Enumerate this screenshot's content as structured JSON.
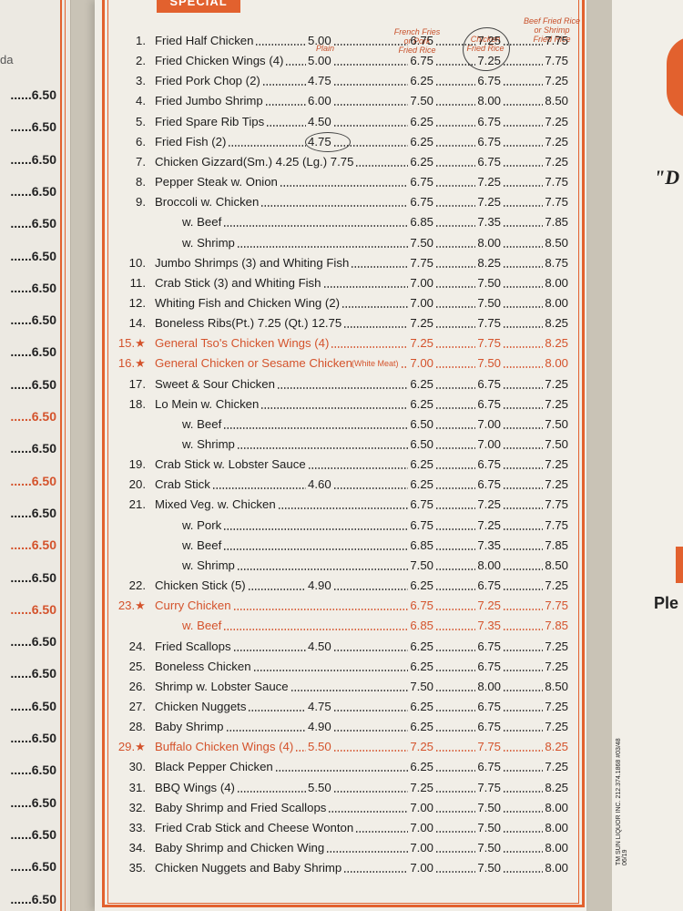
{
  "header": {
    "tab_label": "SPECIAL"
  },
  "columns": {
    "plain": "Plain",
    "fries": [
      "French Fries",
      "or Pork",
      "Fried Rice"
    ],
    "chicken": [
      "Chicken",
      "Fried Rice"
    ],
    "beef": [
      "Beef Fried Rice",
      "or Shrimp",
      "Fried Rice"
    ]
  },
  "left_page": {
    "fragment": "da",
    "prices": [
      "6.50",
      "6.50",
      "6.50",
      "6.50",
      "6.50",
      "6.50",
      "6.50",
      "6.50",
      "6.50",
      "6.50",
      "6.50",
      "6.50",
      "6.50",
      "6.50",
      "6.50",
      "6.50",
      "6.50",
      "6.50",
      "6.50",
      "6.50",
      "6.50",
      "6.50",
      "6.50",
      "6.50",
      "6.50",
      "6.50",
      "6.50"
    ]
  },
  "right_page": {
    "quote": "\"D",
    "ple": "Ple"
  },
  "side_code": "TM SUN LIQUOR INC. 212.374.1868 #03/48 06/19",
  "items": [
    {
      "num": "1.",
      "name": "Fried Half Chicken",
      "plain": "5.00",
      "fries": "6.75",
      "chicken": "7.25",
      "beef": "7.75",
      "red": false,
      "sub": false
    },
    {
      "num": "2.",
      "name": "Fried Chicken Wings (4)",
      "plain": "5.00",
      "fries": "6.75",
      "chicken": "7.25",
      "beef": "7.75",
      "red": false,
      "sub": false
    },
    {
      "num": "3.",
      "name": "Fried Pork Chop (2)",
      "plain": "4.75",
      "fries": "6.25",
      "chicken": "6.75",
      "beef": "7.25",
      "red": false,
      "sub": false
    },
    {
      "num": "4.",
      "name": "Fried Jumbo Shrimp",
      "plain": "6.00",
      "fries": "7.50",
      "chicken": "8.00",
      "beef": "8.50",
      "red": false,
      "sub": false
    },
    {
      "num": "5.",
      "name": "Fried Spare Rib Tips",
      "plain": "4.50",
      "fries": "6.25",
      "chicken": "6.75",
      "beef": "7.25",
      "red": false,
      "sub": false
    },
    {
      "num": "6.",
      "name": "Fried Fish (2)",
      "plain": "4.75",
      "fries": "6.25",
      "chicken": "6.75",
      "beef": "7.25",
      "red": false,
      "sub": false
    },
    {
      "num": "7.",
      "name": "Chicken Gizzard(Sm.) 4.25 (Lg.) 7.75",
      "plain": "",
      "fries": "6.25",
      "chicken": "6.75",
      "beef": "7.25",
      "red": false,
      "sub": false
    },
    {
      "num": "8.",
      "name": "Pepper Steak w. Onion",
      "plain": "",
      "fries": "6.75",
      "chicken": "7.25",
      "beef": "7.75",
      "red": false,
      "sub": false
    },
    {
      "num": "9.",
      "name": "Broccoli w. Chicken",
      "plain": "",
      "fries": "6.75",
      "chicken": "7.25",
      "beef": "7.75",
      "red": false,
      "sub": false
    },
    {
      "num": "",
      "name": "w. Beef",
      "plain": "",
      "fries": "6.85",
      "chicken": "7.35",
      "beef": "7.85",
      "red": false,
      "sub": true
    },
    {
      "num": "",
      "name": "w. Shrimp",
      "plain": "",
      "fries": "7.50",
      "chicken": "8.00",
      "beef": "8.50",
      "red": false,
      "sub": true
    },
    {
      "num": "10.",
      "name": "Jumbo Shrimps (3) and Whiting Fish",
      "plain": "",
      "fries": "7.75",
      "chicken": "8.25",
      "beef": "8.75",
      "red": false,
      "sub": false
    },
    {
      "num": "11.",
      "name": "Crab Stick (3) and Whiting Fish",
      "plain": "",
      "fries": "7.00",
      "chicken": "7.50",
      "beef": "8.00",
      "red": false,
      "sub": false
    },
    {
      "num": "12.",
      "name": "Whiting Fish and Chicken Wing (2)",
      "plain": "",
      "fries": "7.00",
      "chicken": "7.50",
      "beef": "8.00",
      "red": false,
      "sub": false
    },
    {
      "num": "14.",
      "name": "Boneless Ribs(Pt.) 7.25 (Qt.) 12.75",
      "plain": "",
      "fries": "7.25",
      "chicken": "7.75",
      "beef": "8.25",
      "red": false,
      "sub": false
    },
    {
      "num": "15.★",
      "name": "General Tso's Chicken Wings (4)",
      "plain": "",
      "fries": "7.25",
      "chicken": "7.75",
      "beef": "8.25",
      "red": true,
      "sub": false
    },
    {
      "num": "16.★",
      "name": "General Chicken or Sesame Chicken",
      "note": "(White Meat)",
      "plain": "",
      "fries": "7.00",
      "chicken": "7.50",
      "beef": "8.00",
      "red": true,
      "sub": false
    },
    {
      "num": "17.",
      "name": "Sweet & Sour Chicken",
      "plain": "",
      "fries": "6.25",
      "chicken": "6.75",
      "beef": "7.25",
      "red": false,
      "sub": false
    },
    {
      "num": "18.",
      "name": "Lo Mein w. Chicken",
      "plain": "",
      "fries": "6.25",
      "chicken": "6.75",
      "beef": "7.25",
      "red": false,
      "sub": false
    },
    {
      "num": "",
      "name": "w. Beef",
      "plain": "",
      "fries": "6.50",
      "chicken": "7.00",
      "beef": "7.50",
      "red": false,
      "sub": true
    },
    {
      "num": "",
      "name": "w. Shrimp",
      "plain": "",
      "fries": "6.50",
      "chicken": "7.00",
      "beef": "7.50",
      "red": false,
      "sub": true
    },
    {
      "num": "19.",
      "name": "Crab Stick w. Lobster Sauce",
      "plain": "",
      "fries": "6.25",
      "chicken": "6.75",
      "beef": "7.25",
      "red": false,
      "sub": false
    },
    {
      "num": "20.",
      "name": "Crab Stick",
      "plain": "4.60",
      "fries": "6.25",
      "chicken": "6.75",
      "beef": "7.25",
      "red": false,
      "sub": false
    },
    {
      "num": "21.",
      "name": "Mixed Veg. w. Chicken",
      "plain": "",
      "fries": "6.75",
      "chicken": "7.25",
      "beef": "7.75",
      "red": false,
      "sub": false
    },
    {
      "num": "",
      "name": "w. Pork",
      "plain": "",
      "fries": "6.75",
      "chicken": "7.25",
      "beef": "7.75",
      "red": false,
      "sub": true
    },
    {
      "num": "",
      "name": "w. Beef",
      "plain": "",
      "fries": "6.85",
      "chicken": "7.35",
      "beef": "7.85",
      "red": false,
      "sub": true
    },
    {
      "num": "",
      "name": "w. Shrimp",
      "plain": "",
      "fries": "7.50",
      "chicken": "8.00",
      "beef": "8.50",
      "red": false,
      "sub": true
    },
    {
      "num": "22.",
      "name": "Chicken Stick (5)",
      "plain": "4.90",
      "fries": "6.25",
      "chicken": "6.75",
      "beef": "7.25",
      "red": false,
      "sub": false
    },
    {
      "num": "23.★",
      "name": "Curry Chicken",
      "plain": "",
      "fries": "6.75",
      "chicken": "7.25",
      "beef": "7.75",
      "red": true,
      "sub": false
    },
    {
      "num": "",
      "name": "w. Beef",
      "plain": "",
      "fries": "6.85",
      "chicken": "7.35",
      "beef": "7.85",
      "red": true,
      "sub": true
    },
    {
      "num": "24.",
      "name": "Fried Scallops",
      "plain": "4.50",
      "fries": "6.25",
      "chicken": "6.75",
      "beef": "7.25",
      "red": false,
      "sub": false
    },
    {
      "num": "25.",
      "name": "Boneless Chicken",
      "plain": "",
      "fries": "6.25",
      "chicken": "6.75",
      "beef": "7.25",
      "red": false,
      "sub": false
    },
    {
      "num": "26.",
      "name": "Shrimp w. Lobster Sauce",
      "plain": "",
      "fries": "7.50",
      "chicken": "8.00",
      "beef": "8.50",
      "red": false,
      "sub": false
    },
    {
      "num": "27.",
      "name": "Chicken Nuggets",
      "plain": "4.75",
      "fries": "6.25",
      "chicken": "6.75",
      "beef": "7.25",
      "red": false,
      "sub": false
    },
    {
      "num": "28.",
      "name": "Baby Shrimp",
      "plain": "4.90",
      "fries": "6.25",
      "chicken": "6.75",
      "beef": "7.25",
      "red": false,
      "sub": false
    },
    {
      "num": "29.★",
      "name": "Buffalo Chicken Wings (4)",
      "plain": "5.50",
      "fries": "7.25",
      "chicken": "7.75",
      "beef": "8.25",
      "red": true,
      "sub": false
    },
    {
      "num": "30.",
      "name": "Black Pepper Chicken",
      "plain": "",
      "fries": "6.25",
      "chicken": "6.75",
      "beef": "7.25",
      "red": false,
      "sub": false
    },
    {
      "num": "31.",
      "name": "BBQ Wings (4)",
      "plain": "5.50",
      "fries": "7.25",
      "chicken": "7.75",
      "beef": "8.25",
      "red": false,
      "sub": false
    },
    {
      "num": "32.",
      "name": "Baby Shrimp and Fried Scallops",
      "plain": "",
      "fries": "7.00",
      "chicken": "7.50",
      "beef": "8.00",
      "red": false,
      "sub": false
    },
    {
      "num": "33.",
      "name": "Fried Crab Stick and Cheese Wonton",
      "plain": "",
      "fries": "7.00",
      "chicken": "7.50",
      "beef": "8.00",
      "red": false,
      "sub": false
    },
    {
      "num": "34.",
      "name": "Baby Shrimp and Chicken Wing",
      "plain": "",
      "fries": "7.00",
      "chicken": "7.50",
      "beef": "8.00",
      "red": false,
      "sub": false
    },
    {
      "num": "35.",
      "name": "Chicken Nuggets and Baby Shrimp",
      "plain": "",
      "fries": "7.00",
      "chicken": "7.50",
      "beef": "8.00",
      "red": false,
      "sub": false
    }
  ]
}
